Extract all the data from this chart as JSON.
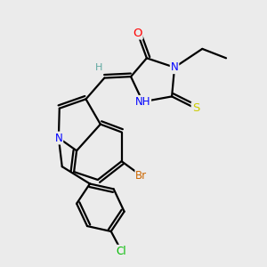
{
  "background_color": "#ebebeb",
  "atom_colors": {
    "O": "#ff0000",
    "N": "#0000ff",
    "S": "#cccc00",
    "Br": "#cc6600",
    "Cl": "#00bb00",
    "C": "#000000",
    "H": "#808080"
  },
  "bond_color": "#000000",
  "bond_width": 1.6
}
